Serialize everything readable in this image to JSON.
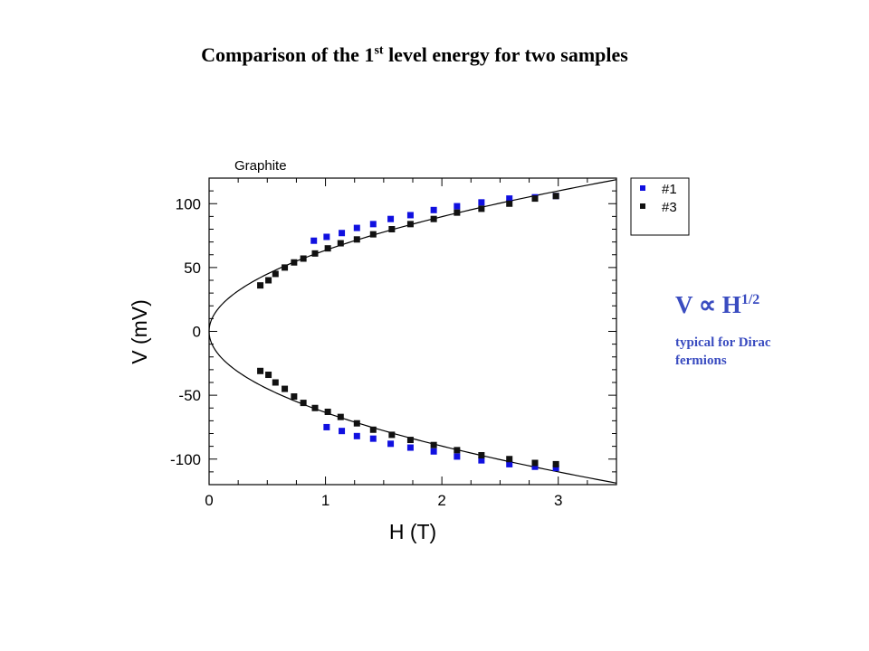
{
  "slide": {
    "title_main": "Comparison of the 1",
    "title_sup": "st",
    "title_rest": " level energy for two samples",
    "formula_main": "V ∝ H",
    "formula_sup": "1/2",
    "note": "typical for Dirac fermions"
  },
  "colors": {
    "series_1": "#1010e0",
    "series_3": "#111111",
    "annotation": "#3a4cc0"
  },
  "chart_data": {
    "type": "scatter",
    "title": "Graphite",
    "xlabel": "H (T)",
    "ylabel": "V (mV)",
    "xlim": [
      0,
      3.5
    ],
    "ylim": [
      -120,
      120
    ],
    "xticks": [
      0,
      1,
      2,
      3
    ],
    "yticks": [
      -100,
      -50,
      0,
      50,
      100
    ],
    "grid": false,
    "legend": "top-right",
    "fit_curve": {
      "form": "V = ± a · H^(1/2)",
      "a": 63.5
    },
    "series": [
      {
        "name": "#1",
        "color": "#1010e0",
        "points": [
          [
            0.9,
            71
          ],
          [
            1.01,
            74
          ],
          [
            1.14,
            77
          ],
          [
            1.27,
            81
          ],
          [
            1.41,
            84
          ],
          [
            1.56,
            88
          ],
          [
            1.73,
            91
          ],
          [
            1.93,
            95
          ],
          [
            2.13,
            98
          ],
          [
            2.34,
            101
          ],
          [
            2.58,
            104
          ],
          [
            2.8,
            105
          ],
          [
            2.98,
            106
          ],
          [
            1.01,
            -75
          ],
          [
            1.14,
            -78
          ],
          [
            1.27,
            -82
          ],
          [
            1.41,
            -84
          ],
          [
            1.56,
            -88
          ],
          [
            1.73,
            -91
          ],
          [
            1.93,
            -94
          ],
          [
            2.13,
            -98
          ],
          [
            2.34,
            -101
          ],
          [
            2.58,
            -104
          ],
          [
            2.8,
            -106
          ],
          [
            2.98,
            -107
          ]
        ]
      },
      {
        "name": "#3",
        "color": "#111111",
        "points": [
          [
            0.44,
            36
          ],
          [
            0.51,
            40
          ],
          [
            0.57,
            45
          ],
          [
            0.65,
            50
          ],
          [
            0.73,
            54
          ],
          [
            0.81,
            57
          ],
          [
            0.91,
            61
          ],
          [
            1.02,
            65
          ],
          [
            1.13,
            69
          ],
          [
            1.27,
            72
          ],
          [
            1.41,
            76
          ],
          [
            1.57,
            80
          ],
          [
            1.73,
            84
          ],
          [
            1.93,
            88
          ],
          [
            2.13,
            93
          ],
          [
            2.34,
            96
          ],
          [
            2.58,
            100
          ],
          [
            2.8,
            104
          ],
          [
            2.98,
            106
          ],
          [
            0.44,
            -31
          ],
          [
            0.51,
            -34
          ],
          [
            0.57,
            -40
          ],
          [
            0.65,
            -45
          ],
          [
            0.73,
            -51
          ],
          [
            0.81,
            -56
          ],
          [
            0.91,
            -60
          ],
          [
            1.02,
            -63
          ],
          [
            1.13,
            -67
          ],
          [
            1.27,
            -72
          ],
          [
            1.41,
            -77
          ],
          [
            1.57,
            -81
          ],
          [
            1.73,
            -85
          ],
          [
            1.93,
            -89
          ],
          [
            2.13,
            -93
          ],
          [
            2.34,
            -97
          ],
          [
            2.58,
            -100
          ],
          [
            2.8,
            -103
          ],
          [
            2.98,
            -104
          ]
        ]
      }
    ]
  }
}
